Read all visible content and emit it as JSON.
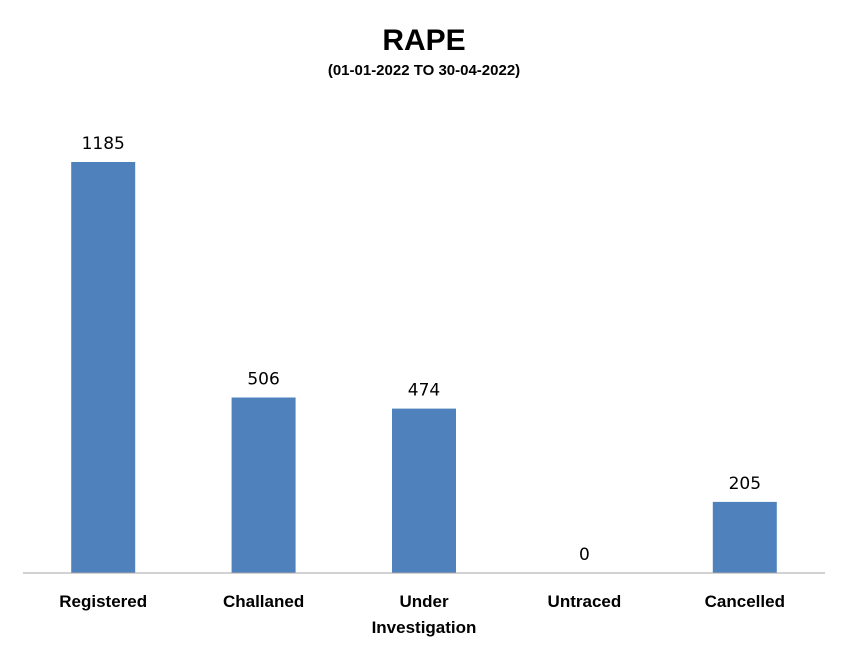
{
  "chart_data": {
    "type": "bar",
    "title": "RAPE",
    "subtitle": "(01-01-2022 TO 30-04-2022)",
    "categories": [
      [
        "Registered"
      ],
      [
        "Challaned"
      ],
      [
        "Under",
        "Investigation"
      ],
      [
        "Untraced"
      ],
      [
        "Cancelled"
      ]
    ],
    "values": [
      1185,
      506,
      474,
      0,
      205
    ],
    "ylim": [
      0,
      1185
    ],
    "grid": false,
    "legend": "none",
    "bar_color": "#4F81BD",
    "axis_color": "#A6A6A6"
  }
}
